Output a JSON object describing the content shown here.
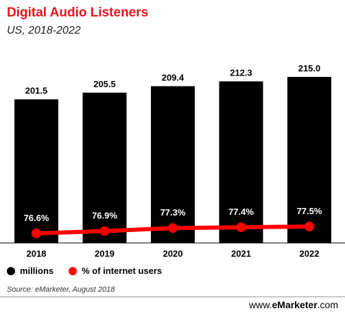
{
  "header": {
    "title": "Digital Audio Listeners",
    "subtitle": "US, 2018-2022"
  },
  "chart_data": {
    "type": "bar",
    "categories": [
      "2018",
      "2019",
      "2020",
      "2021",
      "2022"
    ],
    "series": [
      {
        "name": "millions",
        "type": "bar",
        "values": [
          201.5,
          205.5,
          209.4,
          212.3,
          215.0
        ],
        "labels": [
          "201.5",
          "205.5",
          "209.4",
          "212.3",
          "215.0"
        ],
        "color": "#000000"
      },
      {
        "name": "% of internet users",
        "type": "line",
        "values": [
          76.6,
          76.9,
          77.3,
          77.4,
          77.5
        ],
        "labels": [
          "76.6%",
          "76.9%",
          "77.3%",
          "77.4%",
          "77.5%"
        ],
        "color": "#ff0000"
      }
    ],
    "legend_position": "bottom-left"
  },
  "legend": {
    "items": [
      {
        "label": "millions",
        "color": "#000000"
      },
      {
        "label": "% of internet users",
        "color": "#ff0000"
      }
    ]
  },
  "footer": {
    "source": "Source: eMarketer, August 2018",
    "brand_prefix": "www.",
    "brand_name": "eMarketer",
    "brand_suffix": ".com"
  },
  "colors": {
    "title": "#e8141c",
    "bar": "#000000",
    "line": "#ff0000"
  }
}
